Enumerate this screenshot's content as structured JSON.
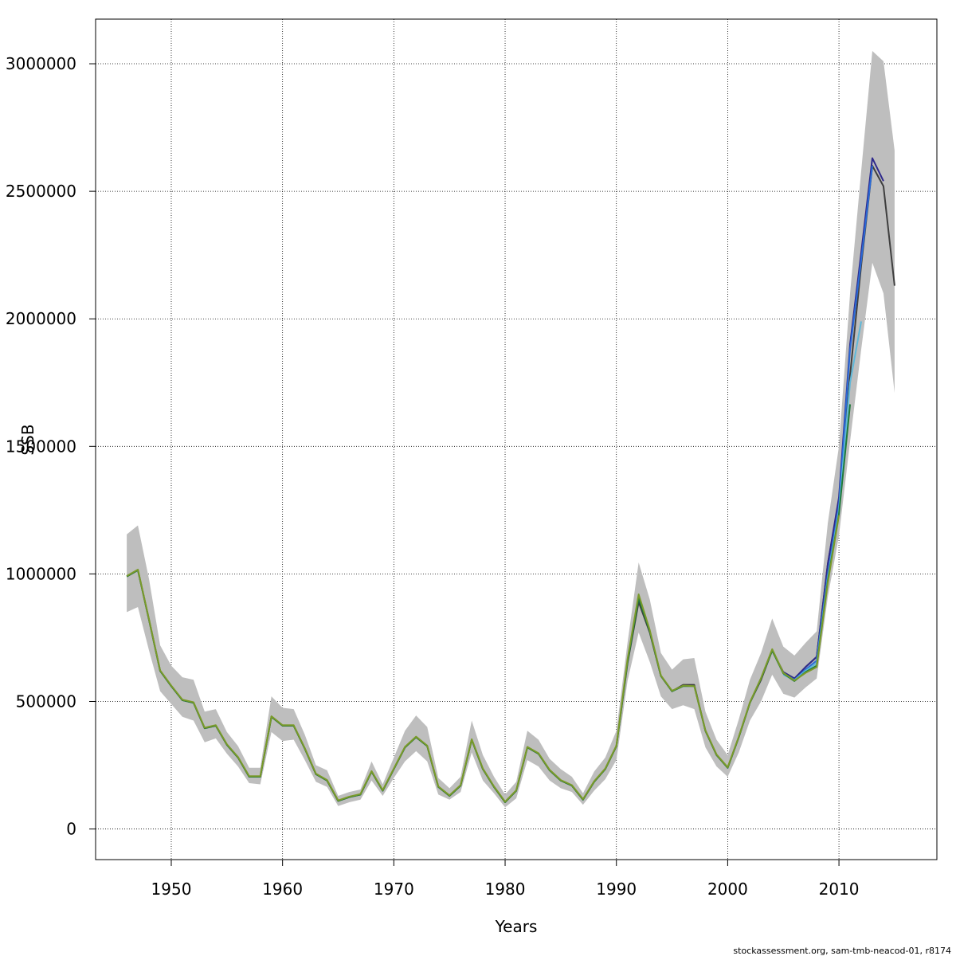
{
  "chart_data": {
    "type": "line",
    "xlabel": "Years",
    "ylabel": "SSB",
    "xlim": [
      1943.2,
      2018.8
    ],
    "ylim": [
      -120000,
      3175000
    ],
    "x_ticks": [
      1950,
      1960,
      1970,
      1980,
      1990,
      2000,
      2010
    ],
    "y_ticks": [
      0,
      500000,
      1000000,
      1500000,
      2000000,
      2500000,
      3000000
    ],
    "grid": true,
    "legend": "none",
    "footer": "stockassessment.org, sam-tmb-neacod-01, r8174",
    "confidence_band": {
      "color": "#bebebe",
      "x": [
        1946,
        1947,
        1948,
        1949,
        1950,
        1951,
        1952,
        1953,
        1954,
        1955,
        1956,
        1957,
        1958,
        1959,
        1960,
        1961,
        1962,
        1963,
        1964,
        1965,
        1966,
        1967,
        1968,
        1969,
        1970,
        1971,
        1972,
        1973,
        1974,
        1975,
        1976,
        1977,
        1978,
        1979,
        1980,
        1981,
        1982,
        1983,
        1984,
        1985,
        1986,
        1987,
        1988,
        1989,
        1990,
        1991,
        1992,
        1993,
        1994,
        1995,
        1996,
        1997,
        1998,
        1999,
        2000,
        2001,
        2002,
        2003,
        2004,
        2005,
        2006,
        2007,
        2008,
        2009,
        2010,
        2011,
        2012,
        2013,
        2014,
        2015
      ],
      "upper": [
        1155000,
        1190000,
        980000,
        720000,
        640000,
        595000,
        585000,
        460000,
        470000,
        380000,
        325000,
        240000,
        240000,
        520000,
        475000,
        470000,
        370000,
        250000,
        230000,
        130000,
        145000,
        155000,
        265000,
        175000,
        280000,
        385000,
        445000,
        400000,
        200000,
        160000,
        205000,
        425000,
        290000,
        205000,
        135000,
        185000,
        385000,
        350000,
        275000,
        235000,
        205000,
        140000,
        225000,
        280000,
        385000,
        730000,
        1045000,
        900000,
        690000,
        625000,
        665000,
        670000,
        460000,
        350000,
        290000,
        430000,
        585000,
        690000,
        825000,
        715000,
        680000,
        730000,
        775000,
        1200000,
        1500000,
        2100000,
        2580000,
        3050000,
        3010000,
        2660000
      ],
      "lower": [
        850000,
        870000,
        700000,
        540000,
        490000,
        440000,
        425000,
        340000,
        355000,
        295000,
        245000,
        180000,
        175000,
        380000,
        345000,
        350000,
        270000,
        185000,
        165000,
        90000,
        105000,
        115000,
        190000,
        130000,
        200000,
        265000,
        305000,
        265000,
        135000,
        115000,
        145000,
        300000,
        190000,
        140000,
        85000,
        120000,
        270000,
        245000,
        190000,
        160000,
        145000,
        95000,
        150000,
        195000,
        270000,
        580000,
        770000,
        655000,
        520000,
        470000,
        485000,
        470000,
        320000,
        245000,
        205000,
        300000,
        425000,
        500000,
        605000,
        530000,
        515000,
        555000,
        590000,
        910000,
        1150000,
        1520000,
        1880000,
        2220000,
        2100000,
        1710000
      ]
    },
    "series": [
      {
        "color": "#3f3f3f",
        "x": [
          1946,
          1947,
          1948,
          1949,
          1950,
          1951,
          1952,
          1953,
          1954,
          1955,
          1956,
          1957,
          1958,
          1959,
          1960,
          1961,
          1962,
          1963,
          1964,
          1965,
          1966,
          1967,
          1968,
          1969,
          1970,
          1971,
          1972,
          1973,
          1974,
          1975,
          1976,
          1977,
          1978,
          1979,
          1980,
          1981,
          1982,
          1983,
          1984,
          1985,
          1986,
          1987,
          1988,
          1989,
          1990,
          1991,
          1992,
          1993,
          1994,
          1995,
          1996,
          1997,
          1998,
          1999,
          2000,
          2001,
          2002,
          2003,
          2004,
          2005,
          2006,
          2007,
          2008,
          2009,
          2010,
          2011,
          2012,
          2013,
          2014,
          2015
        ],
        "values": [
          990000,
          1015000,
          820000,
          620000,
          560000,
          505000,
          495000,
          395000,
          405000,
          330000,
          280000,
          205000,
          205000,
          440000,
          405000,
          405000,
          315000,
          215000,
          190000,
          110000,
          125000,
          135000,
          225000,
          150000,
          235000,
          320000,
          360000,
          325000,
          165000,
          130000,
          170000,
          350000,
          235000,
          165000,
          105000,
          150000,
          320000,
          295000,
          230000,
          190000,
          170000,
          115000,
          185000,
          235000,
          325000,
          650000,
          890000,
          770000,
          600000,
          540000,
          565000,
          565000,
          385000,
          290000,
          240000,
          360000,
          495000,
          585000,
          700000,
          615000,
          590000,
          635000,
          675000,
          1040000,
          1290000,
          1780000,
          2210000,
          2600000,
          2520000,
          2130000
        ]
      },
      {
        "color": "#2f2a8c",
        "x": [
          2005,
          2006,
          2007,
          2008,
          2009,
          2010,
          2011,
          2012,
          2013,
          2014
        ],
        "values": [
          615000,
          590000,
          635000,
          675000,
          1040000,
          1300000,
          1900000,
          2260000,
          2630000,
          2540000
        ]
      },
      {
        "color": "#2a6bd8",
        "x": [
          2005,
          2006,
          2007,
          2008,
          2009,
          2010,
          2011,
          2012,
          2013
        ],
        "values": [
          610000,
          585000,
          625000,
          660000,
          1000000,
          1270000,
          1880000,
          2230000,
          2600000
        ]
      },
      {
        "color": "#5fb8d8",
        "x": [
          2005,
          2006,
          2007,
          2008,
          2009,
          2010,
          2011,
          2012
        ],
        "values": [
          605000,
          583000,
          620000,
          650000,
          985000,
          1250000,
          1750000,
          1990000
        ]
      },
      {
        "color": "#1f7a3a",
        "x": [
          1946,
          1947,
          1948,
          1949,
          1950,
          1951,
          1952,
          1953,
          1954,
          1955,
          1956,
          1957,
          1958,
          1959,
          1960,
          1961,
          1962,
          1963,
          1964,
          1965,
          1966,
          1967,
          1968,
          1969,
          1970,
          1971,
          1972,
          1973,
          1974,
          1975,
          1976,
          1977,
          1978,
          1979,
          1980,
          1981,
          1982,
          1983,
          1984,
          1985,
          1986,
          1987,
          1988,
          1989,
          1990,
          1991,
          1992,
          1993,
          1994,
          1995,
          1996,
          1997,
          1998,
          1999,
          2000,
          2001,
          2002,
          2003,
          2004,
          2005,
          2006,
          2007,
          2008,
          2009,
          2010,
          2011
        ],
        "values": [
          990000,
          1015000,
          820000,
          620000,
          560000,
          505000,
          495000,
          395000,
          405000,
          330000,
          280000,
          205000,
          205000,
          440000,
          405000,
          405000,
          315000,
          215000,
          190000,
          110000,
          125000,
          135000,
          225000,
          150000,
          235000,
          320000,
          360000,
          325000,
          165000,
          130000,
          170000,
          350000,
          235000,
          165000,
          105000,
          150000,
          320000,
          295000,
          230000,
          190000,
          170000,
          115000,
          185000,
          235000,
          325000,
          655000,
          905000,
          775000,
          600000,
          540000,
          560000,
          560000,
          385000,
          290000,
          240000,
          360000,
          495000,
          590000,
          700000,
          610000,
          580000,
          615000,
          640000,
          975000,
          1235000,
          1665000
        ]
      },
      {
        "color": "#7a9a2a",
        "x": [
          1946,
          1947,
          1948,
          1949,
          1950,
          1951,
          1952,
          1953,
          1954,
          1955,
          1956,
          1957,
          1958,
          1959,
          1960,
          1961,
          1962,
          1963,
          1964,
          1965,
          1966,
          1967,
          1968,
          1969,
          1970,
          1971,
          1972,
          1973,
          1974,
          1975,
          1976,
          1977,
          1978,
          1979,
          1980,
          1981,
          1982,
          1983,
          1984,
          1985,
          1986,
          1987,
          1988,
          1989,
          1990,
          1991,
          1992,
          1993,
          1994,
          1995,
          1996,
          1997,
          1998,
          1999,
          2000,
          2001,
          2002,
          2003,
          2004,
          2005,
          2006,
          2007,
          2008,
          2009,
          2010
        ],
        "values": [
          992000,
          1017000,
          822000,
          622000,
          562000,
          507000,
          497000,
          397000,
          407000,
          332000,
          282000,
          207000,
          207000,
          442000,
          407000,
          407000,
          317000,
          217000,
          192000,
          112000,
          127000,
          137000,
          227000,
          152000,
          237000,
          322000,
          362000,
          327000,
          167000,
          132000,
          172000,
          352000,
          237000,
          167000,
          107000,
          152000,
          322000,
          297000,
          232000,
          192000,
          172000,
          117000,
          187000,
          237000,
          327000,
          665000,
          920000,
          780000,
          602000,
          542000,
          562000,
          560000,
          387000,
          292000,
          242000,
          362000,
          497000,
          592000,
          705000,
          612000,
          582000,
          612000,
          635000,
          965000,
          1230000
        ]
      }
    ]
  }
}
